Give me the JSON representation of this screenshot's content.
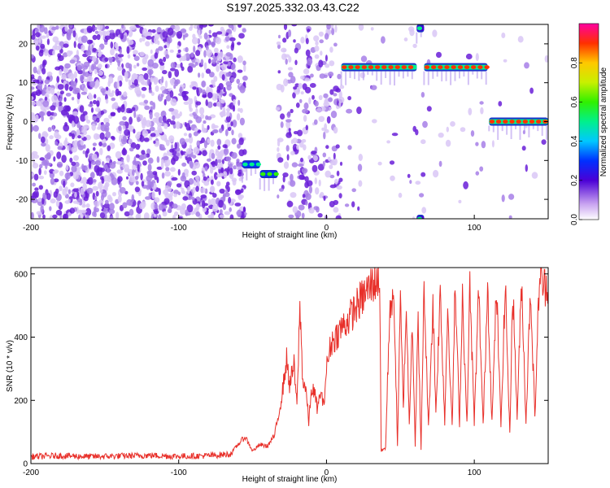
{
  "figure": {
    "title": "S197.2025.332.03.43.C22"
  },
  "chart_data": [
    {
      "type": "heatmap",
      "xlabel": "Height of straight line (km)",
      "ylabel": "Frequency (Hz)",
      "xlim": [
        -200,
        150
      ],
      "ylim": [
        -25,
        25
      ],
      "x_ticks": [
        -200,
        -100,
        0,
        100
      ],
      "y_ticks": [
        -20,
        -10,
        0,
        10,
        20
      ],
      "colorbar": {
        "label": "Normalized spectral amplitude",
        "range": [
          0,
          1
        ],
        "ticks": [
          0.0,
          0.2,
          0.4,
          0.6,
          0.8
        ],
        "tick_labels": [
          "0.0",
          "0.2",
          "0.4",
          "0.6",
          "0.8"
        ]
      },
      "tracks": [
        {
          "x_start": -57,
          "x_end": -45,
          "frequency": -11,
          "amplitude": 0.55
        },
        {
          "x_start": -45,
          "x_end": -33,
          "frequency": -13.5,
          "amplitude": 0.6
        },
        {
          "x_start": 10,
          "x_end": 61,
          "frequency": 14,
          "amplitude": 0.95
        },
        {
          "x_start": 66,
          "x_end": 109,
          "frequency": 14,
          "amplitude": 0.95
        },
        {
          "x_start": 110,
          "x_end": 150,
          "frequency": 0,
          "amplitude": 0.95
        },
        {
          "x_start": 61,
          "x_end": 66,
          "frequency": 24,
          "amplitude": 0.5
        },
        {
          "x_start": 61,
          "x_end": 66,
          "frequency": -25,
          "amplitude": 0.5
        }
      ],
      "noise_regions": [
        {
          "x_start": -200,
          "x_end": -62,
          "density": "high"
        },
        {
          "x_start": -60,
          "x_end": -55,
          "density": "high"
        },
        {
          "x_start": -33,
          "x_end": 10,
          "density": "medium"
        },
        {
          "x_start": 10,
          "x_end": 150,
          "density": "sparse"
        }
      ]
    },
    {
      "type": "line",
      "xlabel": "Height of straight line (km)",
      "ylabel": "SNR (10 * v/v)",
      "xlim": [
        -200,
        150
      ],
      "ylim": [
        0,
        620
      ],
      "x_ticks": [
        -200,
        -100,
        0,
        100
      ],
      "y_ticks": [
        0,
        200,
        400,
        600
      ],
      "color": "#e8302a",
      "series": [
        {
          "points": [
            [
              -200,
              22
            ],
            [
              -180,
              25
            ],
            [
              -160,
              22
            ],
            [
              -140,
              24
            ],
            [
              -120,
              26
            ],
            [
              -100,
              23
            ],
            [
              -80,
              25
            ],
            [
              -65,
              30
            ],
            [
              -60,
              60
            ],
            [
              -55,
              85
            ],
            [
              -50,
              40
            ],
            [
              -45,
              60
            ],
            [
              -40,
              55
            ],
            [
              -35,
              90
            ],
            [
              -30,
              220
            ],
            [
              -27,
              330
            ],
            [
              -25,
              250
            ],
            [
              -22,
              310
            ],
            [
              -20,
              180
            ],
            [
              -18,
              500
            ],
            [
              -16,
              260
            ],
            [
              -14,
              240
            ],
            [
              -12,
              130
            ],
            [
              -10,
              240
            ],
            [
              -8,
              220
            ],
            [
              -6,
              170
            ],
            [
              -4,
              230
            ],
            [
              -2,
              180
            ],
            [
              0,
              300
            ],
            [
              3,
              380
            ],
            [
              6,
              400
            ],
            [
              10,
              430
            ],
            [
              14,
              450
            ],
            [
              18,
              480
            ],
            [
              22,
              510
            ],
            [
              25,
              530
            ],
            [
              28,
              550
            ],
            [
              31,
              570
            ],
            [
              34,
              580
            ],
            [
              36,
              590
            ],
            [
              37,
              40
            ],
            [
              40,
              50
            ],
            [
              43,
              520
            ],
            [
              46,
              480
            ],
            [
              48,
              60
            ],
            [
              50,
              510
            ],
            [
              52,
              180
            ],
            [
              54,
              500
            ],
            [
              56,
              120
            ],
            [
              58,
              470
            ],
            [
              60,
              60
            ],
            [
              62,
              450
            ],
            [
              64,
              40
            ],
            [
              66,
              560
            ],
            [
              69,
              110
            ],
            [
              72,
              510
            ],
            [
              74,
              160
            ],
            [
              77,
              540
            ],
            [
              80,
              130
            ],
            [
              82,
              500
            ],
            [
              85,
              110
            ],
            [
              87,
              560
            ],
            [
              90,
              130
            ],
            [
              92,
              540
            ],
            [
              95,
              120
            ],
            [
              97,
              560
            ],
            [
              100,
              130
            ],
            [
              103,
              550
            ],
            [
              106,
              120
            ],
            [
              109,
              570
            ],
            [
              112,
              130
            ],
            [
              115,
              560
            ],
            [
              118,
              120
            ],
            [
              121,
              570
            ],
            [
              124,
              90
            ],
            [
              126,
              560
            ],
            [
              129,
              150
            ],
            [
              132,
              580
            ],
            [
              135,
              130
            ],
            [
              138,
              560
            ],
            [
              141,
              150
            ],
            [
              144,
              590
            ],
            [
              147,
              560
            ],
            [
              150,
              570
            ]
          ]
        }
      ]
    }
  ]
}
